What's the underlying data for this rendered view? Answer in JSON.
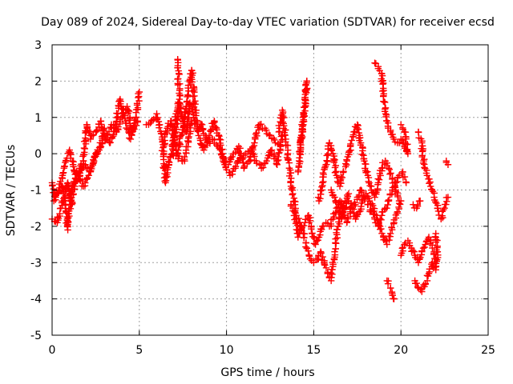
{
  "chart_data": {
    "type": "scatter",
    "title": "Day 089 of 2024, Sidereal Day-to-day VTEC variation (SDTVAR) for receiver ecsd",
    "xlabel": "GPS time / hours",
    "ylabel": "SDTVAR / TECUs",
    "xlim": [
      0,
      25
    ],
    "ylim": [
      -5,
      3
    ],
    "xticks": [
      0,
      5,
      10,
      15,
      20,
      25
    ],
    "yticks": [
      -5,
      -4,
      -3,
      -2,
      -1,
      0,
      1,
      2,
      3
    ],
    "grid": true,
    "marker": "plus",
    "series": [
      {
        "name": "SDTVAR",
        "color": "#ff0000",
        "tracks": [
          [
            [
              0.0,
              -0.8
            ],
            [
              0.2,
              -1.2
            ],
            [
              0.4,
              -1.0
            ],
            [
              0.6,
              -0.6
            ],
            [
              0.8,
              -0.2
            ],
            [
              1.0,
              0.1
            ],
            [
              1.2,
              -0.3
            ],
            [
              1.4,
              -0.7
            ],
            [
              1.6,
              -0.4
            ],
            [
              1.8,
              -0.2
            ],
            [
              2.0,
              0.8
            ],
            [
              2.2,
              0.4
            ],
            [
              2.5,
              0.6
            ],
            [
              2.8,
              0.9
            ],
            [
              3.0,
              0.5
            ],
            [
              3.3,
              0.3
            ],
            [
              3.6,
              0.7
            ],
            [
              3.9,
              1.5
            ],
            [
              4.2,
              0.9
            ],
            [
              4.5,
              0.4
            ],
            [
              4.8,
              1.0
            ],
            [
              5.0,
              1.7
            ]
          ],
          [
            [
              0.0,
              -1.8
            ],
            [
              0.3,
              -1.9
            ],
            [
              0.5,
              -1.5
            ],
            [
              0.7,
              -1.2
            ],
            [
              0.9,
              -0.8
            ],
            [
              1.1,
              -1.4
            ],
            [
              1.3,
              -0.9
            ],
            [
              1.6,
              -0.6
            ],
            [
              1.9,
              -0.3
            ],
            [
              2.2,
              -0.5
            ],
            [
              2.5,
              0.0
            ],
            [
              2.8,
              0.2
            ],
            [
              3.1,
              0.4
            ],
            [
              3.4,
              0.8
            ],
            [
              3.7,
              0.6
            ],
            [
              4.0,
              1.0
            ],
            [
              4.3,
              1.3
            ],
            [
              4.6,
              0.6
            ],
            [
              4.9,
              0.9
            ]
          ],
          [
            [
              0.1,
              -1.3
            ],
            [
              0.3,
              -1.1
            ],
            [
              0.6,
              -0.9
            ],
            [
              0.8,
              -1.6
            ],
            [
              0.9,
              -2.1
            ],
            [
              1.1,
              -1.0
            ],
            [
              1.4,
              -0.5
            ],
            [
              1.8,
              -0.9
            ],
            [
              2.1,
              -0.6
            ],
            [
              2.4,
              -0.2
            ],
            [
              2.7,
              0.1
            ],
            [
              3.0,
              0.7
            ]
          ],
          [
            [
              5.4,
              0.8
            ],
            [
              5.7,
              0.9
            ],
            [
              6.0,
              1.1
            ],
            [
              6.3,
              0.4
            ],
            [
              6.5,
              -0.8
            ],
            [
              6.7,
              -0.3
            ],
            [
              6.9,
              0.2
            ],
            [
              7.1,
              0.6
            ],
            [
              7.3,
              1.4
            ],
            [
              7.5,
              0.9
            ],
            [
              7.7,
              0.6
            ],
            [
              7.9,
              1.4
            ],
            [
              8.1,
              1.0
            ],
            [
              8.3,
              0.7
            ],
            [
              8.6,
              0.8
            ],
            [
              8.9,
              0.3
            ],
            [
              9.2,
              0.4
            ],
            [
              9.5,
              0.2
            ],
            [
              9.8,
              -0.1
            ],
            [
              10.1,
              -0.3
            ],
            [
              10.4,
              0.0
            ],
            [
              10.7,
              0.2
            ],
            [
              11.0,
              -0.4
            ],
            [
              11.3,
              -0.2
            ],
            [
              11.6,
              0.3
            ],
            [
              11.9,
              0.8
            ],
            [
              12.2,
              0.7
            ],
            [
              12.5,
              0.5
            ],
            [
              12.8,
              0.3
            ],
            [
              13.1,
              0.2
            ]
          ],
          [
            [
              6.4,
              0.2
            ],
            [
              6.6,
              0.7
            ],
            [
              6.8,
              0.9
            ],
            [
              7.0,
              0.3
            ],
            [
              7.2,
              0.0
            ],
            [
              7.4,
              0.5
            ],
            [
              7.6,
              1.0
            ],
            [
              7.8,
              1.6
            ],
            [
              8.0,
              2.3
            ],
            [
              8.2,
              1.2
            ],
            [
              8.4,
              0.5
            ],
            [
              8.7,
              0.1
            ],
            [
              9.0,
              0.5
            ],
            [
              9.3,
              0.9
            ],
            [
              9.6,
              0.4
            ],
            [
              9.9,
              -0.3
            ],
            [
              10.2,
              -0.6
            ],
            [
              10.5,
              -0.4
            ],
            [
              10.8,
              -0.1
            ],
            [
              11.1,
              0.0
            ],
            [
              11.4,
              0.1
            ],
            [
              11.7,
              -0.2
            ],
            [
              12.0,
              -0.4
            ],
            [
              12.3,
              -0.2
            ],
            [
              12.6,
              0.1
            ],
            [
              12.9,
              -0.3
            ],
            [
              13.2,
              0.5
            ]
          ],
          [
            [
              7.2,
              2.6
            ],
            [
              7.3,
              1.5
            ],
            [
              7.1,
              1.1
            ],
            [
              6.9,
              0.0
            ],
            [
              7.6,
              -0.2
            ],
            [
              8.0,
              0.9
            ]
          ],
          [
            [
              13.0,
              0.6
            ],
            [
              13.2,
              1.2
            ],
            [
              13.4,
              0.4
            ],
            [
              13.6,
              -0.4
            ],
            [
              13.8,
              -1.1
            ],
            [
              14.0,
              -1.7
            ],
            [
              14.2,
              -1.9
            ],
            [
              14.4,
              -2.2
            ],
            [
              14.6,
              -2.6
            ],
            [
              14.8,
              -2.9
            ],
            [
              15.0,
              -3.0
            ],
            [
              15.2,
              -2.9
            ],
            [
              15.4,
              -2.7
            ],
            [
              15.6,
              -3.0
            ],
            [
              15.8,
              -3.3
            ],
            [
              16.0,
              -3.5
            ],
            [
              16.2,
              -2.7
            ],
            [
              16.4,
              -2.0
            ],
            [
              16.6,
              -1.6
            ],
            [
              16.8,
              -1.3
            ],
            [
              17.0,
              -1.1
            ]
          ],
          [
            [
              13.7,
              -1.4
            ],
            [
              13.9,
              -1.6
            ],
            [
              14.1,
              -2.3
            ],
            [
              14.3,
              -2.0
            ],
            [
              14.5,
              -1.9
            ],
            [
              14.7,
              -1.7
            ],
            [
              14.9,
              -2.2
            ],
            [
              15.1,
              -2.5
            ],
            [
              15.3,
              -2.3
            ],
            [
              15.5,
              -2.0
            ],
            [
              15.7,
              -1.9
            ],
            [
              15.9,
              -2.0
            ],
            [
              16.1,
              -1.8
            ],
            [
              16.3,
              -1.5
            ],
            [
              16.5,
              -1.3
            ],
            [
              16.7,
              -1.6
            ],
            [
              16.9,
              -1.9
            ],
            [
              17.1,
              -1.6
            ],
            [
              17.3,
              -1.4
            ],
            [
              17.5,
              -1.2
            ],
            [
              17.7,
              -1.0
            ],
            [
              17.9,
              -1.2
            ],
            [
              18.1,
              -1.4
            ],
            [
              18.3,
              -1.6
            ],
            [
              18.5,
              -1.8
            ],
            [
              18.7,
              -2.0
            ],
            [
              18.9,
              -1.7
            ],
            [
              19.1,
              -1.5
            ],
            [
              19.3,
              -1.3
            ],
            [
              19.5,
              -1.0
            ],
            [
              19.7,
              -0.8
            ],
            [
              19.9,
              -0.6
            ],
            [
              20.1,
              -0.5
            ],
            [
              20.3,
              -0.8
            ]
          ],
          [
            [
              14.2,
              0.0
            ],
            [
              14.4,
              0.8
            ],
            [
              14.6,
              2.0
            ],
            [
              14.5,
              1.4
            ],
            [
              14.3,
              0.5
            ],
            [
              14.1,
              -0.5
            ]
          ],
          [
            [
              15.3,
              -1.3
            ],
            [
              15.5,
              -0.8
            ],
            [
              15.7,
              -0.3
            ],
            [
              15.9,
              0.3
            ],
            [
              16.1,
              0.0
            ],
            [
              16.3,
              -0.6
            ],
            [
              16.5,
              -0.9
            ],
            [
              16.7,
              -0.5
            ],
            [
              16.9,
              -0.2
            ],
            [
              17.1,
              0.2
            ],
            [
              17.3,
              0.6
            ],
            [
              17.5,
              0.8
            ],
            [
              17.7,
              0.3
            ],
            [
              17.9,
              -0.2
            ],
            [
              18.1,
              -0.6
            ],
            [
              18.3,
              -0.9
            ],
            [
              18.5,
              -1.2
            ],
            [
              18.7,
              -0.8
            ],
            [
              18.9,
              -0.4
            ],
            [
              19.1,
              -0.2
            ],
            [
              19.3,
              -0.4
            ],
            [
              19.5,
              -0.7
            ],
            [
              19.7,
              -1.0
            ],
            [
              19.9,
              -1.3
            ]
          ],
          [
            [
              16.0,
              -1.0
            ],
            [
              16.2,
              -1.2
            ],
            [
              16.4,
              -1.5
            ],
            [
              16.6,
              -1.8
            ],
            [
              16.8,
              -1.5
            ],
            [
              17.0,
              -1.3
            ],
            [
              17.2,
              -1.5
            ],
            [
              17.4,
              -1.8
            ],
            [
              17.6,
              -1.6
            ],
            [
              17.8,
              -1.3
            ],
            [
              18.0,
              -1.1
            ],
            [
              18.2,
              -1.3
            ],
            [
              18.4,
              -1.5
            ],
            [
              18.6,
              -1.7
            ],
            [
              18.8,
              -2.0
            ],
            [
              19.0,
              -2.3
            ],
            [
              19.2,
              -2.5
            ],
            [
              19.4,
              -2.2
            ],
            [
              19.6,
              -1.9
            ],
            [
              19.8,
              -1.6
            ],
            [
              20.0,
              -1.3
            ]
          ],
          [
            [
              18.5,
              2.5
            ],
            [
              18.7,
              2.4
            ],
            [
              18.9,
              2.2
            ],
            [
              19.0,
              1.6
            ],
            [
              19.2,
              0.9
            ],
            [
              19.4,
              0.6
            ],
            [
              19.6,
              0.4
            ],
            [
              19.8,
              0.3
            ],
            [
              20.0,
              0.4
            ],
            [
              20.2,
              0.2
            ],
            [
              20.4,
              0.0
            ],
            [
              20.2,
              0.6
            ],
            [
              20.0,
              0.8
            ]
          ],
          [
            [
              19.2,
              -3.5
            ],
            [
              19.4,
              -3.7
            ],
            [
              19.6,
              -4.0
            ]
          ],
          [
            [
              20.0,
              -2.8
            ],
            [
              20.2,
              -2.5
            ],
            [
              20.4,
              -2.4
            ],
            [
              20.6,
              -2.6
            ],
            [
              20.8,
              -2.8
            ],
            [
              21.0,
              -3.0
            ],
            [
              21.2,
              -2.7
            ],
            [
              21.4,
              -2.5
            ],
            [
              21.6,
              -2.3
            ],
            [
              21.8,
              -2.6
            ],
            [
              22.0,
              -2.9
            ]
          ],
          [
            [
              20.7,
              -1.4
            ],
            [
              20.9,
              -1.5
            ],
            [
              21.1,
              -1.3
            ]
          ],
          [
            [
              20.8,
              -3.5
            ],
            [
              21.0,
              -3.7
            ],
            [
              21.2,
              -3.8
            ],
            [
              21.4,
              -3.6
            ],
            [
              21.6,
              -3.3
            ],
            [
              21.8,
              -3.0
            ],
            [
              22.0,
              -3.2
            ],
            [
              22.1,
              -2.7
            ],
            [
              22.0,
              -2.2
            ]
          ],
          [
            [
              21.0,
              0.6
            ],
            [
              21.2,
              0.3
            ],
            [
              21.3,
              -0.2
            ],
            [
              21.5,
              -0.6
            ],
            [
              21.7,
              -0.9
            ],
            [
              21.9,
              -1.2
            ],
            [
              22.1,
              -1.5
            ],
            [
              22.3,
              -1.8
            ],
            [
              22.5,
              -1.5
            ],
            [
              22.7,
              -1.2
            ]
          ],
          [
            [
              22.6,
              -0.2
            ],
            [
              22.7,
              -0.3
            ]
          ]
        ]
      }
    ]
  }
}
